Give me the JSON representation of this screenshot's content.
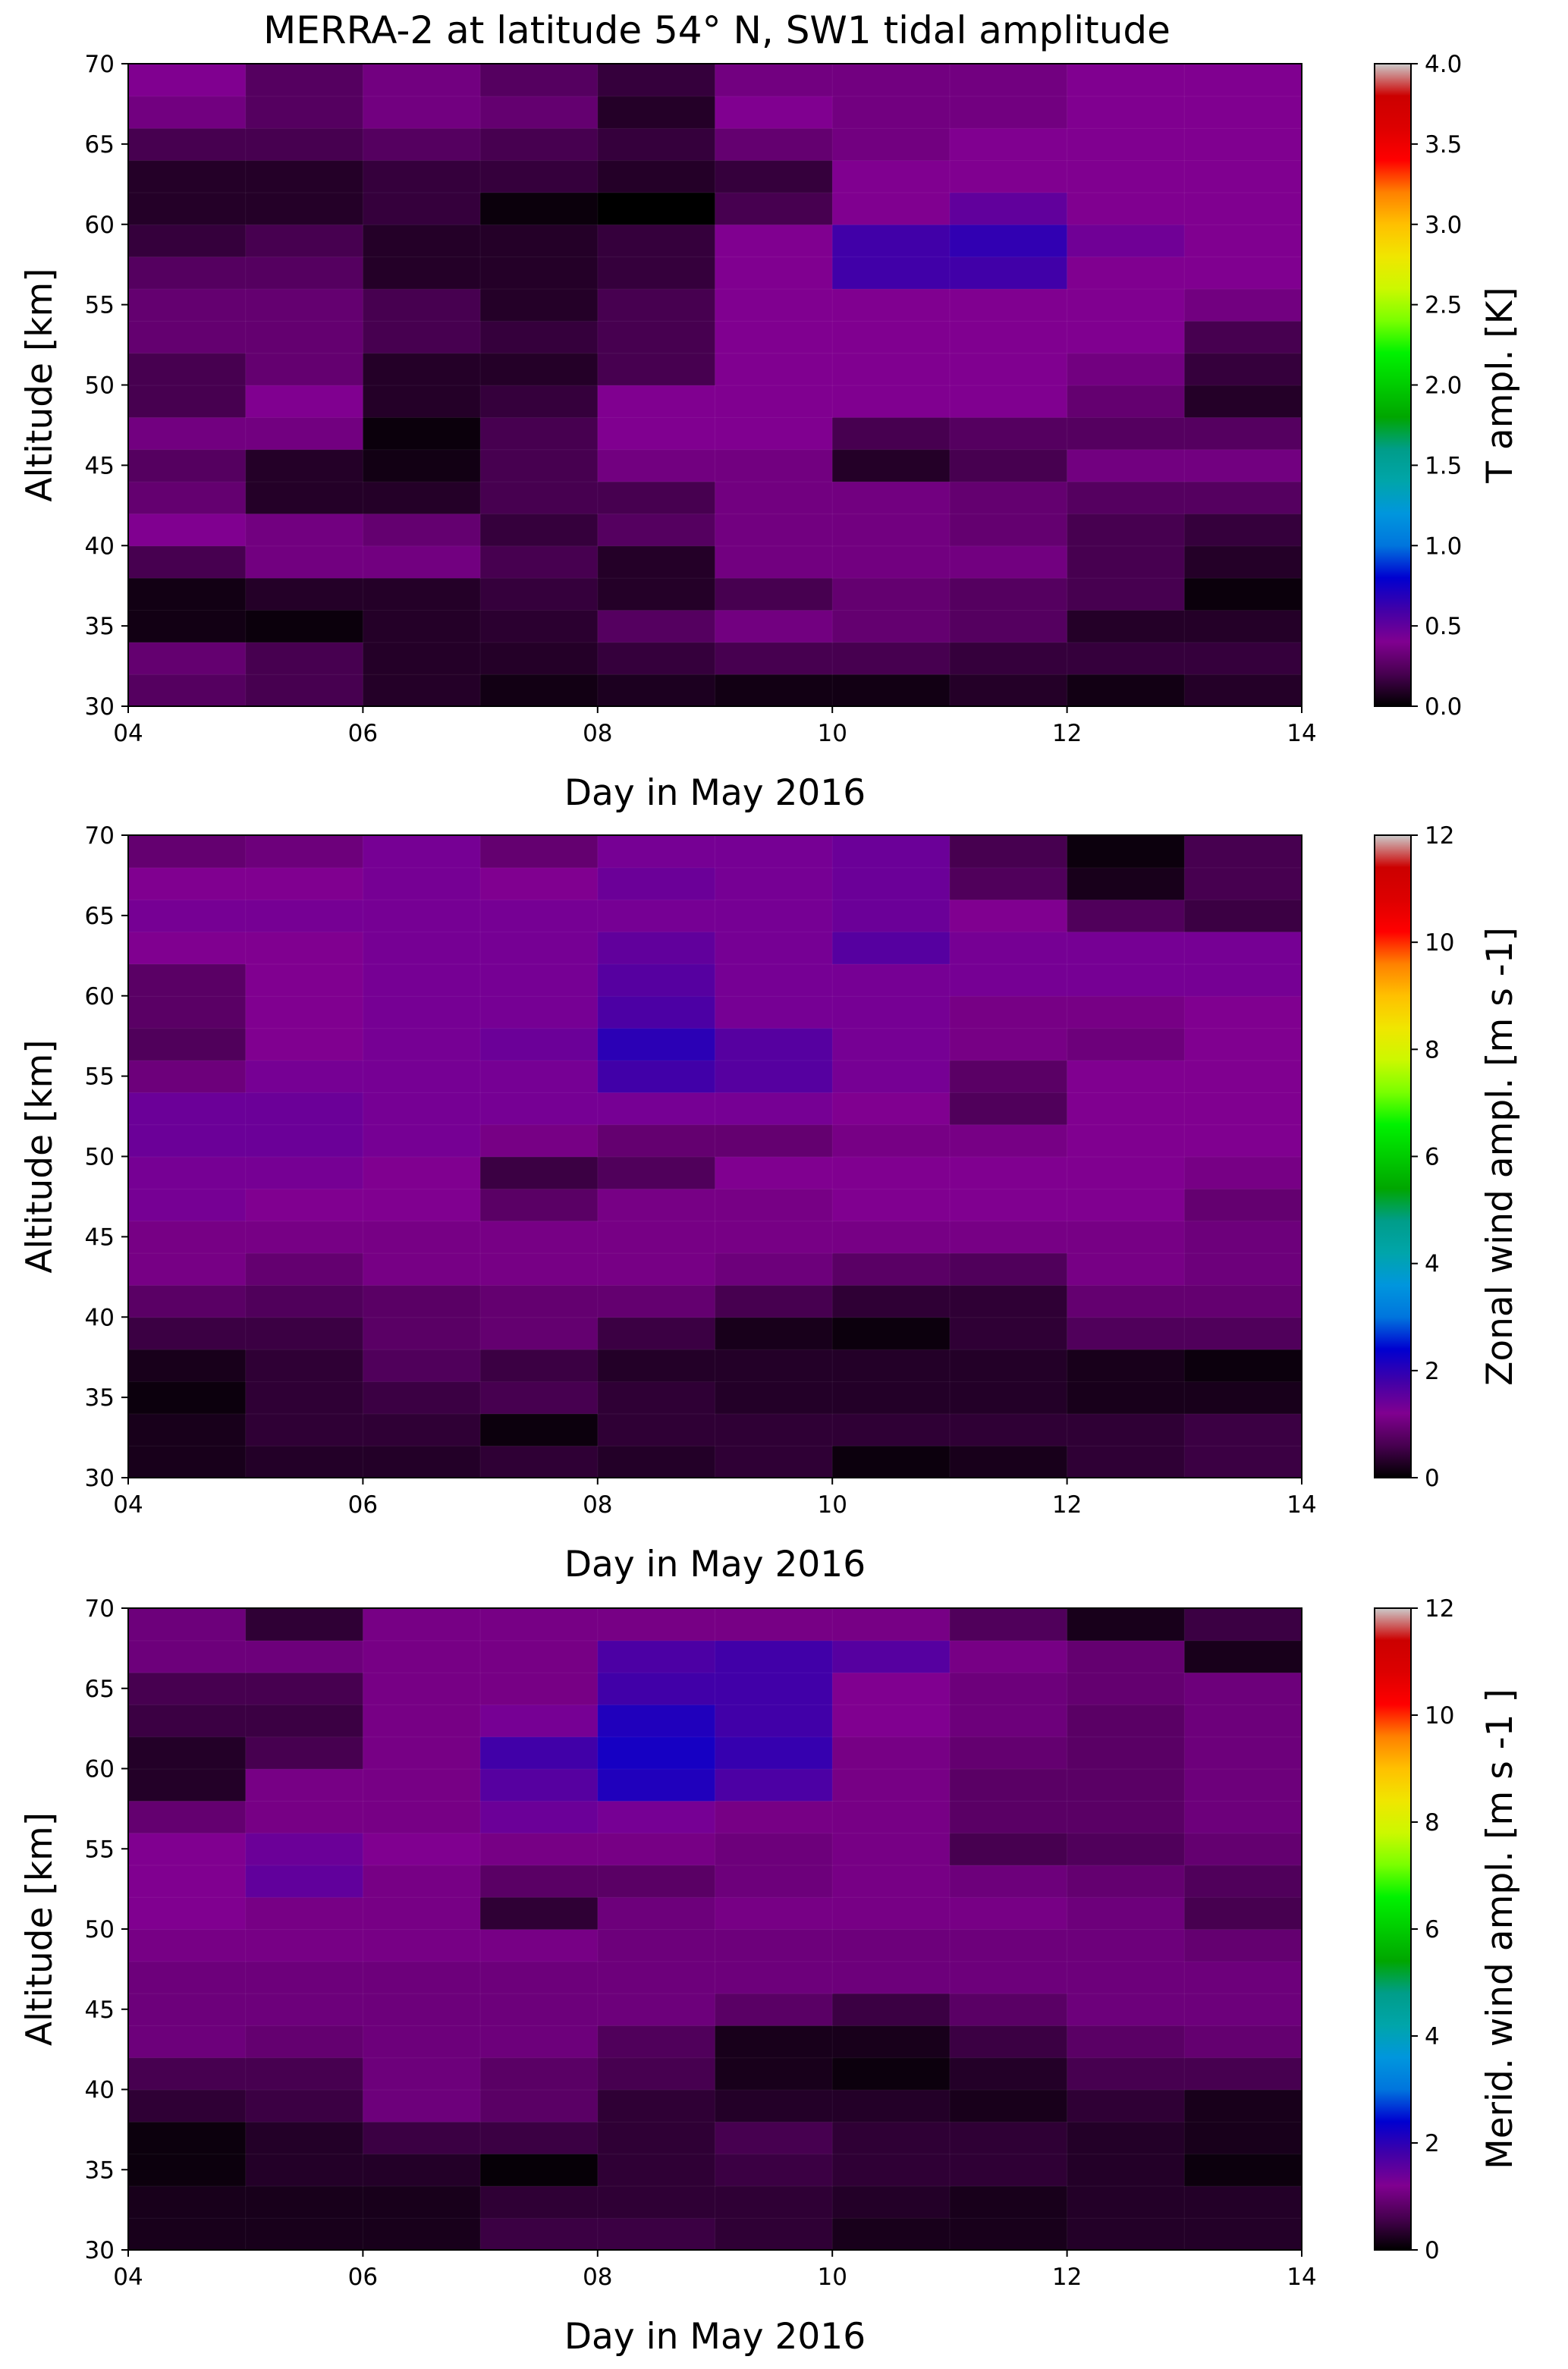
{
  "title": "MERRA-2 at latitude 54° N, SW1 tidal amplitude",
  "chart_data": [
    {
      "type": "heatmap",
      "title": "MERRA-2 at latitude 54° N, SW1 tidal amplitude",
      "xlabel": "Day in May 2016",
      "ylabel": "Altitude [km]",
      "xlim": [
        4,
        14
      ],
      "ylim": [
        30,
        70
      ],
      "x_ticks": [
        "04",
        "06",
        "08",
        "10",
        "12",
        "14"
      ],
      "y_ticks": [
        "30",
        "35",
        "40",
        "45",
        "50",
        "55",
        "60",
        "65",
        "70"
      ],
      "x_edges": [
        4,
        5,
        6,
        7,
        8,
        9,
        10,
        11,
        12,
        13,
        14
      ],
      "y_edges": [
        30,
        32,
        34,
        36,
        38,
        40,
        42,
        44,
        46,
        48,
        50,
        52,
        54,
        56,
        58,
        60,
        62,
        64,
        66,
        68,
        70
      ],
      "colorbar": {
        "label": "T ampl. [K]",
        "vmin": 0,
        "vmax": 4,
        "ticks": [
          "0.0",
          "0.5",
          "1.0",
          "1.5",
          "2.0",
          "2.5",
          "3.0",
          "3.5",
          "4.0"
        ]
      },
      "z": [
        [
          0.25,
          0.2,
          0.1,
          0.05,
          0.08,
          0.05,
          0.05,
          0.1,
          0.05,
          0.1
        ],
        [
          0.3,
          0.2,
          0.1,
          0.1,
          0.15,
          0.2,
          0.2,
          0.15,
          0.15,
          0.15
        ],
        [
          0.05,
          0.03,
          0.1,
          0.12,
          0.25,
          0.35,
          0.3,
          0.25,
          0.1,
          0.1
        ],
        [
          0.05,
          0.1,
          0.1,
          0.15,
          0.1,
          0.2,
          0.3,
          0.25,
          0.2,
          0.03
        ],
        [
          0.2,
          0.35,
          0.35,
          0.2,
          0.1,
          0.35,
          0.35,
          0.35,
          0.2,
          0.1
        ],
        [
          0.4,
          0.35,
          0.3,
          0.15,
          0.25,
          0.35,
          0.35,
          0.3,
          0.2,
          0.15
        ],
        [
          0.3,
          0.1,
          0.1,
          0.2,
          0.2,
          0.35,
          0.35,
          0.3,
          0.25,
          0.25
        ],
        [
          0.25,
          0.1,
          0.05,
          0.2,
          0.35,
          0.35,
          0.1,
          0.2,
          0.35,
          0.35
        ],
        [
          0.35,
          0.35,
          0.03,
          0.2,
          0.4,
          0.4,
          0.2,
          0.25,
          0.25,
          0.25
        ],
        [
          0.2,
          0.4,
          0.1,
          0.15,
          0.4,
          0.4,
          0.4,
          0.4,
          0.3,
          0.1
        ],
        [
          0.2,
          0.3,
          0.1,
          0.1,
          0.2,
          0.4,
          0.4,
          0.4,
          0.35,
          0.15
        ],
        [
          0.3,
          0.3,
          0.2,
          0.15,
          0.2,
          0.4,
          0.4,
          0.4,
          0.4,
          0.2
        ],
        [
          0.3,
          0.3,
          0.2,
          0.1,
          0.2,
          0.4,
          0.4,
          0.4,
          0.4,
          0.35
        ],
        [
          0.25,
          0.25,
          0.1,
          0.1,
          0.15,
          0.4,
          0.6,
          0.6,
          0.4,
          0.4
        ],
        [
          0.15,
          0.2,
          0.1,
          0.1,
          0.15,
          0.4,
          0.6,
          0.65,
          0.45,
          0.4
        ],
        [
          0.1,
          0.1,
          0.15,
          0.03,
          0.0,
          0.2,
          0.4,
          0.5,
          0.4,
          0.4
        ],
        [
          0.1,
          0.1,
          0.15,
          0.15,
          0.1,
          0.15,
          0.4,
          0.4,
          0.4,
          0.4
        ],
        [
          0.2,
          0.2,
          0.25,
          0.2,
          0.15,
          0.3,
          0.35,
          0.4,
          0.4,
          0.4
        ],
        [
          0.35,
          0.25,
          0.35,
          0.3,
          0.1,
          0.4,
          0.35,
          0.35,
          0.4,
          0.4
        ],
        [
          0.4,
          0.25,
          0.35,
          0.25,
          0.15,
          0.35,
          0.35,
          0.35,
          0.4,
          0.4
        ]
      ]
    },
    {
      "type": "heatmap",
      "xlabel": "Day in May 2016",
      "ylabel": "Altitude [km]",
      "xlim": [
        4,
        14
      ],
      "ylim": [
        30,
        70
      ],
      "x_ticks": [
        "04",
        "06",
        "08",
        "10",
        "12",
        "14"
      ],
      "y_ticks": [
        "30",
        "35",
        "40",
        "45",
        "50",
        "55",
        "60",
        "65",
        "70"
      ],
      "x_edges": [
        4,
        5,
        6,
        7,
        8,
        9,
        10,
        11,
        12,
        13,
        14
      ],
      "y_edges": [
        30,
        32,
        34,
        36,
        38,
        40,
        42,
        44,
        46,
        48,
        50,
        52,
        54,
        56,
        58,
        60,
        62,
        64,
        66,
        68,
        70
      ],
      "colorbar": {
        "label": "Zonal wind ampl. [m s -1]",
        "vmin": 0,
        "vmax": 12,
        "ticks": [
          "0",
          "2",
          "4",
          "6",
          "8",
          "10",
          "12"
        ]
      },
      "z": [
        [
          0.2,
          0.3,
          0.3,
          0.4,
          0.3,
          0.4,
          0.1,
          0.2,
          0.4,
          0.5
        ],
        [
          0.2,
          0.4,
          0.4,
          0.1,
          0.4,
          0.4,
          0.4,
          0.4,
          0.4,
          0.5
        ],
        [
          0.1,
          0.4,
          0.5,
          0.6,
          0.4,
          0.3,
          0.3,
          0.3,
          0.2,
          0.2
        ],
        [
          0.2,
          0.4,
          0.7,
          0.5,
          0.3,
          0.3,
          0.3,
          0.3,
          0.2,
          0.1
        ],
        [
          0.5,
          0.5,
          0.8,
          0.9,
          0.5,
          0.2,
          0.1,
          0.4,
          0.7,
          0.7
        ],
        [
          0.8,
          0.7,
          0.8,
          0.9,
          0.9,
          0.6,
          0.4,
          0.4,
          0.9,
          0.9
        ],
        [
          1.1,
          0.9,
          1.1,
          1.1,
          1.1,
          1.0,
          0.8,
          0.7,
          1.1,
          1.0
        ],
        [
          1.1,
          1.1,
          1.1,
          1.1,
          1.1,
          1.1,
          1.1,
          1.1,
          1.1,
          1.0
        ],
        [
          1.3,
          1.2,
          1.2,
          0.8,
          1.1,
          1.1,
          1.2,
          1.2,
          1.2,
          0.9
        ],
        [
          1.3,
          1.3,
          1.2,
          0.5,
          0.7,
          1.2,
          1.2,
          1.2,
          1.2,
          1.1
        ],
        [
          1.4,
          1.4,
          1.3,
          1.1,
          0.9,
          0.9,
          1.1,
          1.1,
          1.2,
          1.2
        ],
        [
          1.4,
          1.4,
          1.3,
          1.3,
          1.3,
          1.3,
          1.2,
          0.7,
          1.2,
          1.2
        ],
        [
          1.0,
          1.3,
          1.3,
          1.3,
          1.8,
          1.6,
          1.3,
          0.8,
          1.2,
          1.2
        ],
        [
          0.7,
          1.2,
          1.3,
          1.4,
          2.0,
          1.6,
          1.3,
          1.1,
          1.0,
          1.2
        ],
        [
          0.8,
          1.2,
          1.3,
          1.3,
          1.7,
          1.3,
          1.3,
          1.1,
          1.1,
          1.2
        ],
        [
          0.8,
          1.2,
          1.3,
          1.3,
          1.6,
          1.3,
          1.3,
          1.3,
          1.3,
          1.3
        ],
        [
          1.2,
          1.2,
          1.3,
          1.3,
          1.5,
          1.3,
          1.6,
          1.3,
          1.3,
          1.3
        ],
        [
          1.3,
          1.3,
          1.3,
          1.3,
          1.3,
          1.3,
          1.4,
          1.2,
          0.7,
          0.5
        ],
        [
          1.2,
          1.2,
          1.3,
          1.2,
          1.4,
          1.3,
          1.4,
          0.7,
          0.2,
          0.6
        ],
        [
          0.9,
          1.0,
          1.3,
          0.9,
          1.3,
          1.3,
          1.4,
          0.6,
          0.1,
          0.6
        ]
      ]
    },
    {
      "type": "heatmap",
      "xlabel": "Day in May 2016",
      "ylabel": "Altitude [km]",
      "xlim": [
        4,
        14
      ],
      "ylim": [
        30,
        70
      ],
      "x_ticks": [
        "04",
        "06",
        "08",
        "10",
        "12",
        "14"
      ],
      "y_ticks": [
        "30",
        "35",
        "40",
        "45",
        "50",
        "55",
        "60",
        "65",
        "70"
      ],
      "x_edges": [
        4,
        5,
        6,
        7,
        8,
        9,
        10,
        11,
        12,
        13,
        14
      ],
      "y_edges": [
        30,
        32,
        34,
        36,
        38,
        40,
        42,
        44,
        46,
        48,
        50,
        52,
        54,
        56,
        58,
        60,
        62,
        64,
        66,
        68,
        70
      ],
      "colorbar": {
        "label": "Merid. wind ampl. [m s -1 ]",
        "vmin": 0,
        "vmax": 12,
        "ticks": [
          "0",
          "2",
          "4",
          "6",
          "8",
          "10",
          "12"
        ]
      },
      "z": [
        [
          0.2,
          0.2,
          0.2,
          0.5,
          0.5,
          0.4,
          0.2,
          0.2,
          0.3,
          0.3
        ],
        [
          0.2,
          0.2,
          0.2,
          0.4,
          0.4,
          0.4,
          0.3,
          0.2,
          0.3,
          0.3
        ],
        [
          0.1,
          0.3,
          0.3,
          0.05,
          0.4,
          0.5,
          0.4,
          0.4,
          0.3,
          0.1
        ],
        [
          0.1,
          0.3,
          0.5,
          0.5,
          0.4,
          0.6,
          0.4,
          0.4,
          0.3,
          0.2
        ],
        [
          0.4,
          0.5,
          1.0,
          0.8,
          0.4,
          0.3,
          0.3,
          0.2,
          0.4,
          0.2
        ],
        [
          0.6,
          0.6,
          1.0,
          0.8,
          0.6,
          0.2,
          0.1,
          0.3,
          0.6,
          0.6
        ],
        [
          1.0,
          0.9,
          1.0,
          1.0,
          0.7,
          0.2,
          0.2,
          0.5,
          0.8,
          0.9
        ],
        [
          1.0,
          1.0,
          1.0,
          1.0,
          1.0,
          0.8,
          0.5,
          0.8,
          1.0,
          1.0
        ],
        [
          1.0,
          1.0,
          1.0,
          1.0,
          1.0,
          1.0,
          1.0,
          1.0,
          1.0,
          1.0
        ],
        [
          1.1,
          1.1,
          1.1,
          1.1,
          1.0,
          1.0,
          1.0,
          1.0,
          1.0,
          0.9
        ],
        [
          1.2,
          1.1,
          1.1,
          0.4,
          1.0,
          1.1,
          1.1,
          1.1,
          1.0,
          0.6
        ],
        [
          1.2,
          1.5,
          1.1,
          0.8,
          0.8,
          1.0,
          1.1,
          1.0,
          0.9,
          0.7
        ],
        [
          1.2,
          1.4,
          1.2,
          1.1,
          1.1,
          1.0,
          1.1,
          0.6,
          0.7,
          0.9
        ],
        [
          0.9,
          1.1,
          1.1,
          1.4,
          1.3,
          1.1,
          1.1,
          0.8,
          0.8,
          1.0
        ],
        [
          0.3,
          1.1,
          1.1,
          1.6,
          2.1,
          1.7,
          1.1,
          0.8,
          0.8,
          1.0
        ],
        [
          0.3,
          0.6,
          1.1,
          1.8,
          2.2,
          1.9,
          1.1,
          0.9,
          0.8,
          1.0
        ],
        [
          0.5,
          0.5,
          1.1,
          1.3,
          2.1,
          1.8,
          1.2,
          1.0,
          0.8,
          1.0
        ],
        [
          0.6,
          0.6,
          1.1,
          1.1,
          1.8,
          1.8,
          1.2,
          1.0,
          0.9,
          1.0
        ],
        [
          1.0,
          1.0,
          1.1,
          1.1,
          1.7,
          1.8,
          1.6,
          1.1,
          0.9,
          0.2
        ],
        [
          1.0,
          0.4,
          1.1,
          1.1,
          1.1,
          1.1,
          1.1,
          0.7,
          0.2,
          0.5
        ]
      ]
    }
  ]
}
